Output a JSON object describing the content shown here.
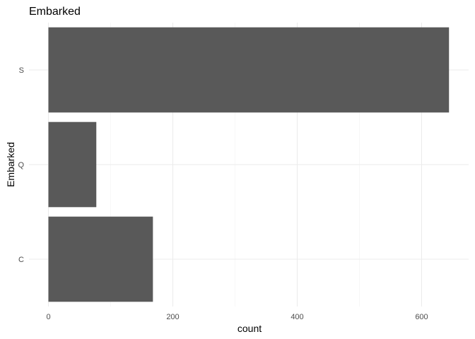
{
  "chart_data": {
    "type": "bar",
    "orientation": "horizontal",
    "title": "Embarked",
    "xlabel": "count",
    "ylabel": "Embarked",
    "categories": [
      "C",
      "Q",
      "S"
    ],
    "values": [
      168,
      77,
      644
    ],
    "xlim": [
      0,
      675
    ],
    "x_ticks": [
      0,
      200,
      400,
      600
    ],
    "grid": true,
    "legend": "none",
    "bar_color": "#595959",
    "grid_color": "#ebebeb"
  }
}
